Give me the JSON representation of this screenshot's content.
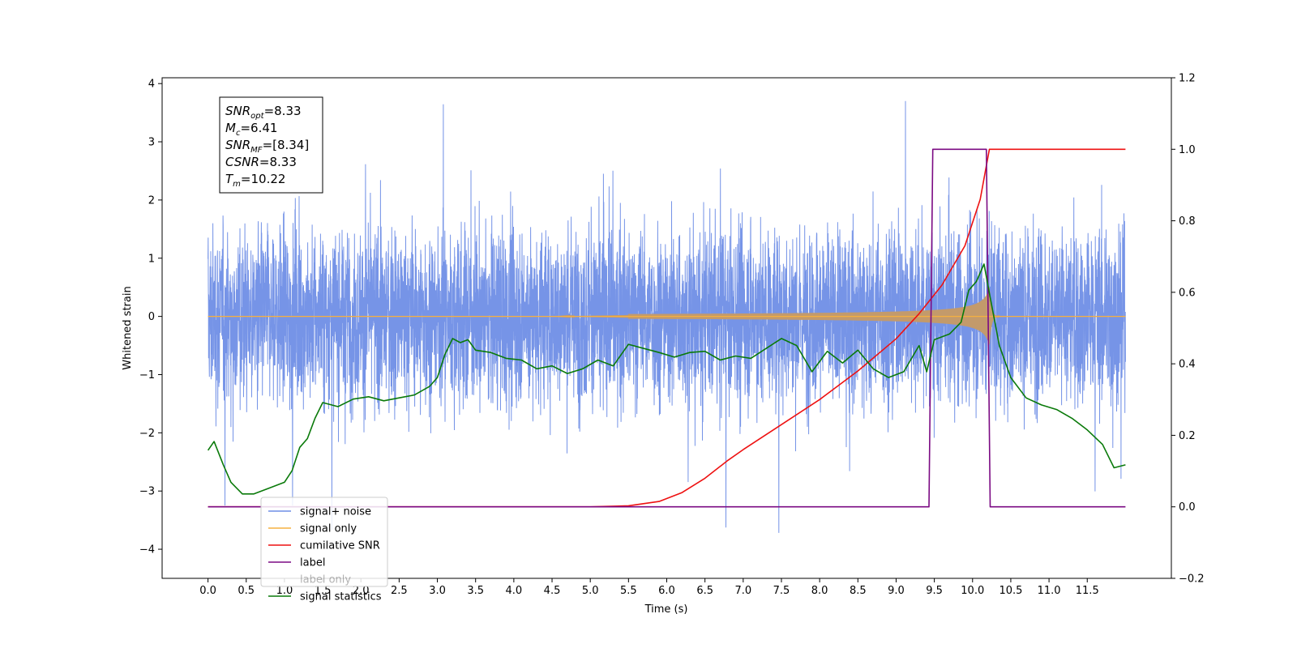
{
  "chart_data": {
    "type": "line",
    "title": "",
    "xlabel": "Time (s)",
    "ylabel": "Whitened strain",
    "y2label": "",
    "xlim": [
      -0.6,
      12.6
    ],
    "ylim": [
      -4.5,
      4.1
    ],
    "y2lim": [
      -0.2,
      1.2
    ],
    "grid": false,
    "legend_position": "lower-left",
    "x_ticks": [
      "0.0",
      "0.5",
      "1.0",
      "1.5",
      "2.0",
      "2.5",
      "3.0",
      "3.5",
      "4.0",
      "4.5",
      "5.0",
      "5.5",
      "6.0",
      "6.5",
      "7.0",
      "7.5",
      "8.0",
      "8.5",
      "9.0",
      "9.5",
      "10.0",
      "10.5",
      "11.0",
      "11.5"
    ],
    "y_ticks": [
      "4",
      "3",
      "2",
      "1",
      "0",
      "−1",
      "−2",
      "−3",
      "−4"
    ],
    "y2_ticks": [
      "1.2",
      "1.0",
      "0.8",
      "0.6",
      "0.4",
      "0.2",
      "0.0",
      "−0.2"
    ],
    "info_box": [
      {
        "base": "SNR",
        "sub": "opt",
        "value": "=8.33"
      },
      {
        "base": "M",
        "sub": "c",
        "value": "=6.41"
      },
      {
        "base": "SNR",
        "sub": "MF",
        "value": "=[8.34]"
      },
      {
        "base": "CSNR",
        "sub": "",
        "value": "=8.33"
      },
      {
        "base": "T",
        "sub": "m",
        "value": "=10.22"
      }
    ],
    "series": [
      {
        "name": "signal+ noise",
        "axis": "left",
        "color": "#6f8ee6",
        "kind": "noise",
        "x_range": [
          0.0,
          12.0
        ],
        "noise_std": 0.75,
        "peak_min": -4.1,
        "peak_max": 3.7
      },
      {
        "name": "signal only",
        "axis": "left",
        "color": "#f5b041",
        "kind": "chirp",
        "merger_time": 10.22,
        "peak_amplitude": 0.5
      },
      {
        "name": "cumilative SNR",
        "axis": "right",
        "color": "#ee1111",
        "points": [
          [
            0.0,
            0.0
          ],
          [
            5.0,
            0.0
          ],
          [
            5.5,
            0.003
          ],
          [
            5.9,
            0.015
          ],
          [
            6.2,
            0.04
          ],
          [
            6.5,
            0.08
          ],
          [
            6.8,
            0.13
          ],
          [
            7.0,
            0.16
          ],
          [
            7.5,
            0.23
          ],
          [
            8.0,
            0.3
          ],
          [
            8.5,
            0.38
          ],
          [
            9.0,
            0.47
          ],
          [
            9.3,
            0.54
          ],
          [
            9.6,
            0.62
          ],
          [
            9.9,
            0.73
          ],
          [
            10.1,
            0.86
          ],
          [
            10.22,
            1.0
          ],
          [
            12.0,
            1.0
          ]
        ]
      },
      {
        "name": "label",
        "axis": "right",
        "color": "#7b0a83",
        "points": [
          [
            0.0,
            0.0
          ],
          [
            9.43,
            0.0
          ],
          [
            9.48,
            1.0
          ],
          [
            10.18,
            1.0
          ],
          [
            10.23,
            0.0
          ],
          [
            12.0,
            0.0
          ]
        ]
      },
      {
        "name": "label only",
        "axis": "right",
        "color": "#7b0a83",
        "hidden": true,
        "points": []
      },
      {
        "name": "signal statistics",
        "axis": "left",
        "color": "#0a7a0a",
        "points": [
          [
            0.0,
            -2.3
          ],
          [
            0.08,
            -2.15
          ],
          [
            0.2,
            -2.55
          ],
          [
            0.3,
            -2.85
          ],
          [
            0.45,
            -3.05
          ],
          [
            0.6,
            -3.05
          ],
          [
            0.8,
            -2.95
          ],
          [
            1.0,
            -2.85
          ],
          [
            1.1,
            -2.65
          ],
          [
            1.2,
            -2.25
          ],
          [
            1.3,
            -2.1
          ],
          [
            1.4,
            -1.75
          ],
          [
            1.5,
            -1.48
          ],
          [
            1.7,
            -1.55
          ],
          [
            1.9,
            -1.42
          ],
          [
            2.1,
            -1.38
          ],
          [
            2.3,
            -1.45
          ],
          [
            2.5,
            -1.4
          ],
          [
            2.7,
            -1.35
          ],
          [
            2.9,
            -1.2
          ],
          [
            3.0,
            -1.05
          ],
          [
            3.1,
            -0.65
          ],
          [
            3.2,
            -0.38
          ],
          [
            3.3,
            -0.45
          ],
          [
            3.4,
            -0.4
          ],
          [
            3.5,
            -0.58
          ],
          [
            3.7,
            -0.62
          ],
          [
            3.9,
            -0.72
          ],
          [
            4.1,
            -0.75
          ],
          [
            4.3,
            -0.9
          ],
          [
            4.5,
            -0.85
          ],
          [
            4.7,
            -0.98
          ],
          [
            4.9,
            -0.9
          ],
          [
            5.1,
            -0.75
          ],
          [
            5.3,
            -0.85
          ],
          [
            5.5,
            -0.48
          ],
          [
            5.7,
            -0.55
          ],
          [
            5.9,
            -0.62
          ],
          [
            6.1,
            -0.7
          ],
          [
            6.3,
            -0.62
          ],
          [
            6.5,
            -0.6
          ],
          [
            6.7,
            -0.75
          ],
          [
            6.9,
            -0.68
          ],
          [
            7.1,
            -0.72
          ],
          [
            7.3,
            -0.55
          ],
          [
            7.5,
            -0.38
          ],
          [
            7.7,
            -0.5
          ],
          [
            7.9,
            -0.95
          ],
          [
            8.1,
            -0.6
          ],
          [
            8.3,
            -0.8
          ],
          [
            8.5,
            -0.58
          ],
          [
            8.7,
            -0.9
          ],
          [
            8.9,
            -1.05
          ],
          [
            9.1,
            -0.95
          ],
          [
            9.3,
            -0.5
          ],
          [
            9.4,
            -0.95
          ],
          [
            9.5,
            -0.4
          ],
          [
            9.7,
            -0.3
          ],
          [
            9.85,
            -0.1
          ],
          [
            9.95,
            0.45
          ],
          [
            10.05,
            0.6
          ],
          [
            10.15,
            0.9
          ],
          [
            10.22,
            0.4
          ],
          [
            10.35,
            -0.5
          ],
          [
            10.5,
            -1.05
          ],
          [
            10.7,
            -1.4
          ],
          [
            10.9,
            -1.52
          ],
          [
            11.1,
            -1.6
          ],
          [
            11.3,
            -1.75
          ],
          [
            11.5,
            -1.95
          ],
          [
            11.7,
            -2.2
          ],
          [
            11.85,
            -2.6
          ],
          [
            12.0,
            -2.55
          ]
        ]
      }
    ]
  }
}
